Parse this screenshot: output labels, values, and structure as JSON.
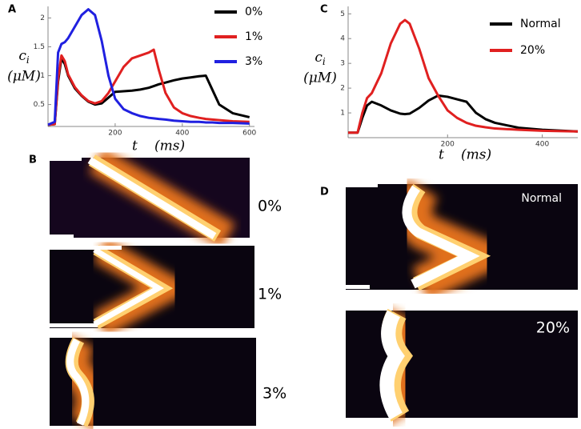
{
  "chart_data": [
    {
      "type": "line",
      "panel": "A",
      "ylabel": {
        "symbol": "c",
        "subscript": "i",
        "unit": "(μM)"
      },
      "xlabel": {
        "symbol": "t",
        "unit": "(ms)"
      },
      "x": [
        0,
        20,
        30,
        40,
        50,
        60,
        80,
        100,
        120,
        140,
        160,
        180,
        200,
        225,
        250,
        275,
        300,
        315,
        330,
        350,
        375,
        400,
        425,
        450,
        470,
        490,
        510,
        550,
        600
      ],
      "series": [
        {
          "name": "0%",
          "color": "#000000",
          "values": [
            0.15,
            0.16,
            0.9,
            1.3,
            1.2,
            1.0,
            0.78,
            0.65,
            0.55,
            0.5,
            0.52,
            0.62,
            0.72,
            0.73,
            0.74,
            0.76,
            0.79,
            0.82,
            0.85,
            0.88,
            0.92,
            0.95,
            0.97,
            0.99,
            1.0,
            0.75,
            0.5,
            0.35,
            0.28
          ]
        },
        {
          "name": "1%",
          "color": "#e02020",
          "values": [
            0.15,
            0.16,
            0.95,
            1.35,
            1.25,
            1.02,
            0.8,
            0.66,
            0.56,
            0.52,
            0.56,
            0.7,
            0.9,
            1.15,
            1.3,
            1.35,
            1.4,
            1.45,
            1.1,
            0.7,
            0.45,
            0.35,
            0.3,
            0.27,
            0.25,
            0.24,
            0.23,
            0.21,
            0.2
          ]
        },
        {
          "name": "3%",
          "color": "#2020e0",
          "values": [
            0.15,
            0.2,
            1.4,
            1.55,
            1.58,
            1.65,
            1.85,
            2.05,
            2.15,
            2.05,
            1.6,
            1.0,
            0.6,
            0.42,
            0.35,
            0.3,
            0.27,
            0.26,
            0.25,
            0.24,
            0.22,
            0.21,
            0.2,
            0.2,
            0.19,
            0.19,
            0.18,
            0.18,
            0.17
          ]
        }
      ],
      "xlim": [
        0,
        615
      ],
      "xticks": [
        200,
        400,
        600
      ],
      "ylim": [
        0.12,
        2.2
      ],
      "yticks": [
        0.5,
        1,
        1.5,
        2
      ],
      "legend": "upper right"
    },
    {
      "type": "line",
      "panel": "C",
      "ylabel": {
        "symbol": "c",
        "subscript": "i",
        "unit": "(μM)"
      },
      "xlabel": {
        "symbol": "t",
        "unit": "(ms)"
      },
      "x": [
        -10,
        10,
        20,
        30,
        40,
        60,
        80,
        100,
        110,
        120,
        140,
        160,
        180,
        200,
        220,
        240,
        260,
        280,
        300,
        350,
        400,
        475
      ],
      "series": [
        {
          "name": "Normal",
          "color": "#000000",
          "values": [
            0.2,
            0.2,
            0.8,
            1.3,
            1.45,
            1.3,
            1.1,
            0.97,
            0.95,
            0.97,
            1.2,
            1.5,
            1.7,
            1.65,
            1.55,
            1.45,
            1.0,
            0.75,
            0.6,
            0.4,
            0.32,
            0.25
          ]
        },
        {
          "name": "20%",
          "color": "#e02020",
          "values": [
            0.2,
            0.2,
            1.0,
            1.6,
            1.8,
            2.6,
            3.8,
            4.6,
            4.75,
            4.6,
            3.6,
            2.4,
            1.7,
            1.1,
            0.8,
            0.6,
            0.48,
            0.42,
            0.37,
            0.32,
            0.28,
            0.25
          ]
        }
      ],
      "xlim": [
        -10,
        475
      ],
      "xticks": [
        200,
        400
      ],
      "ylim": [
        0,
        5.3
      ],
      "yticks": [
        1,
        2,
        3,
        4,
        5
      ],
      "legend": "upper right"
    }
  ],
  "panels": {
    "B": {
      "label": "B",
      "rows": [
        "0%",
        "1%",
        "3%"
      ]
    },
    "D": {
      "label": "D",
      "rows": [
        "Normal",
        "20%"
      ]
    }
  }
}
